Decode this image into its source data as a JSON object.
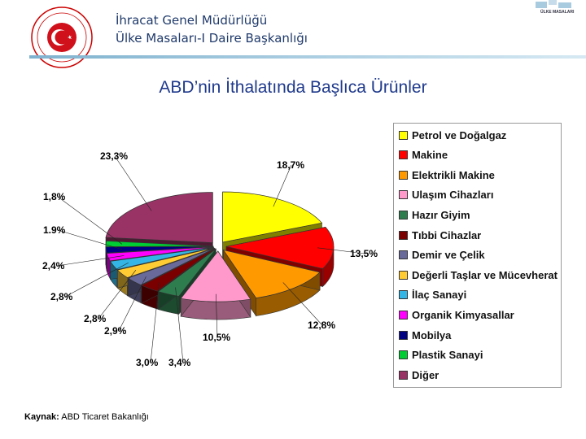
{
  "header": {
    "line1": "İhracat Genel Müdürlüğü",
    "line2": "Ülke Masaları-I Daire Başkanlığı",
    "corner_logo_text": "ÜLKE MASALARI"
  },
  "source": {
    "label": "Kaynak:",
    "text": "ABD Ticaret Bakanlığı"
  },
  "chart_data": {
    "type": "pie",
    "title": "ABD’nin İthalatında Başlıca Ürünler",
    "legend_position": "right",
    "slices": [
      {
        "name": "Petrol ve Doğalgaz",
        "value": 18.7,
        "label": "18,7%",
        "color": "#ffff00"
      },
      {
        "name": "Makine",
        "value": 13.5,
        "label": "13,5%",
        "color": "#ff0000"
      },
      {
        "name": "Elektrikli Makine",
        "value": 12.8,
        "label": "12,8%",
        "color": "#ff9900"
      },
      {
        "name": "Ulaşım Cihazları",
        "value": 10.5,
        "label": "10,5%",
        "color": "#ff99cc"
      },
      {
        "name": "Hazır Giyim",
        "value": 3.4,
        "label": "3,4%",
        "color": "#2e7d4f"
      },
      {
        "name": "Tıbbi Cihazlar",
        "value": 3.0,
        "label": "3,0%",
        "color": "#7a0000"
      },
      {
        "name": "Demir ve Çelik",
        "value": 2.9,
        "label": "2,9%",
        "color": "#6a6a9a"
      },
      {
        "name": "Değerli Taşlar ve Mücevherat",
        "value": 2.8,
        "label": "2,8%",
        "color": "#ffcc33"
      },
      {
        "name": "İlaç Sanayi",
        "value": 2.8,
        "label": "2,8%",
        "color": "#33b5e5"
      },
      {
        "name": "Organik Kimyasallar",
        "value": 2.4,
        "label": "2,4%",
        "color": "#ff00ff"
      },
      {
        "name": "Mobilya",
        "value": 1.9,
        "label": "1.9%",
        "color": "#000080"
      },
      {
        "name": "Plastik Sanayi",
        "value": 1.8,
        "label": "1,8%",
        "color": "#00cc33"
      },
      {
        "name": "Diğer",
        "value": 23.3,
        "label": "23,3%",
        "color": "#993366"
      }
    ]
  }
}
